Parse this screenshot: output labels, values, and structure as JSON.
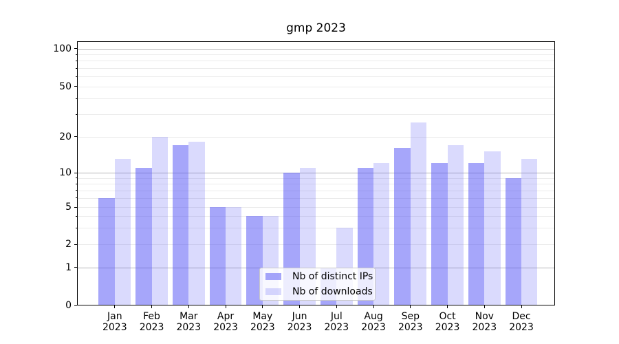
{
  "chart_data": {
    "type": "bar",
    "title": "gmp 2023",
    "categories": [
      "Jan 2023",
      "Feb 2023",
      "Mar 2023",
      "Apr 2023",
      "May 2023",
      "Jun 2023",
      "Jul 2023",
      "Aug 2023",
      "Sep 2023",
      "Oct 2023",
      "Nov 2023",
      "Dec 2023"
    ],
    "series": [
      {
        "name": "Nb of distinct IPs",
        "values": [
          6,
          11,
          17,
          5,
          4,
          10,
          1,
          11,
          16,
          12,
          12,
          9
        ],
        "color": "rgba(85,85,245,0.52)"
      },
      {
        "name": "Nb of downloads",
        "values": [
          13,
          20,
          18,
          5,
          4,
          11,
          3,
          12,
          26,
          17,
          15,
          13
        ],
        "color": "rgba(85,85,245,0.22)"
      }
    ],
    "yscale": "log-like",
    "ylim": [
      0,
      114
    ],
    "y_ticks": [
      0,
      1,
      2,
      5,
      10,
      20,
      50,
      100
    ],
    "minor_gridline_values": [
      3,
      4,
      6,
      7,
      8,
      9,
      30,
      40,
      60,
      70,
      80,
      90
    ],
    "grid": "horizontal major+minor",
    "legend_position": "lower center"
  },
  "colors": {
    "bar_distinct_ips": "rgba(85,85,245,0.52)",
    "bar_downloads": "rgba(85,85,245,0.22)",
    "gridline_decade": "#b4b4b6",
    "gridline_minor": "#ebebeb",
    "axis_spine": "#000000",
    "legend_border": "#c8c8c8"
  }
}
